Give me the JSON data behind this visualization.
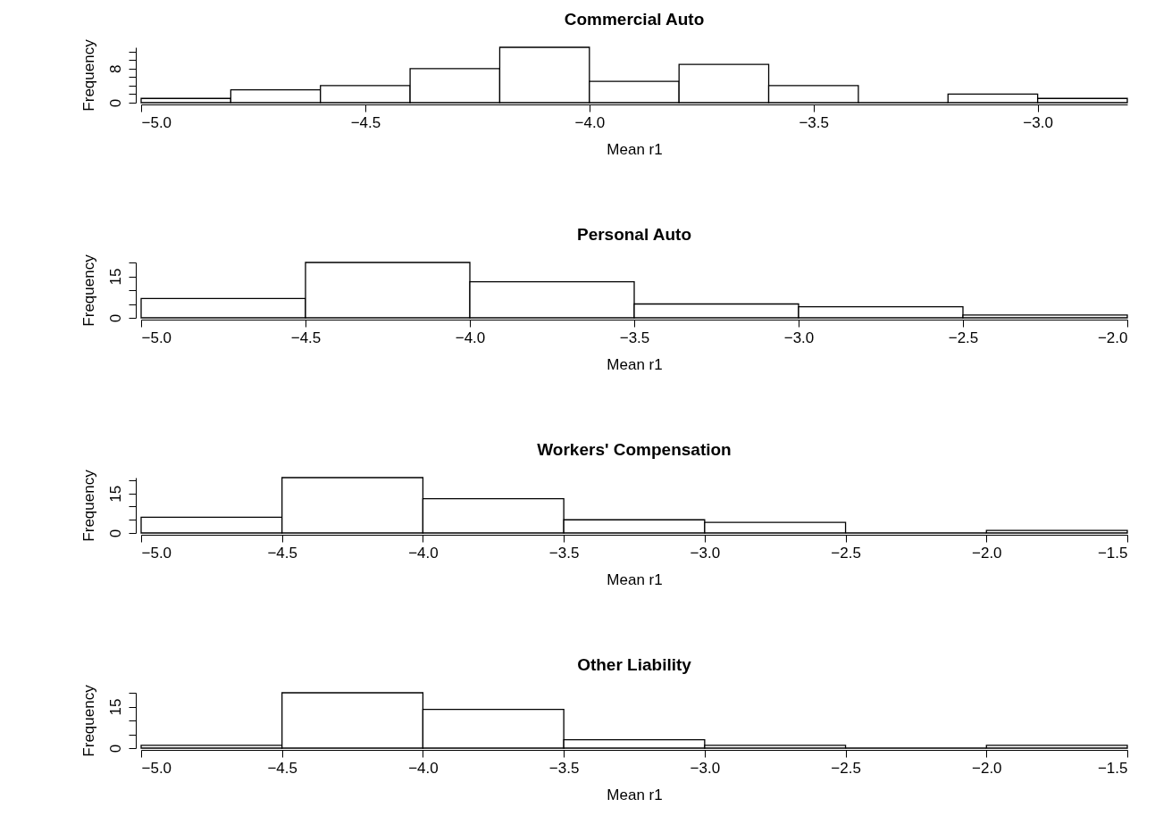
{
  "chart_data": [
    {
      "type": "histogram",
      "title": "Commercial Auto",
      "xlabel": "Mean r1",
      "ylabel": "Frequency",
      "bins": [
        -5.0,
        -4.8,
        -4.6,
        -4.4,
        -4.2,
        -4.0,
        -3.8,
        -3.6,
        -3.4,
        -3.2,
        -3.0,
        -2.8
      ],
      "values": [
        1,
        3,
        4,
        8,
        13,
        5,
        9,
        4,
        0,
        2,
        1
      ],
      "xlim": [
        -5.0,
        -2.8
      ],
      "xticks": [
        {
          "value": -5,
          "label": "−5.0"
        },
        {
          "value": -4.5,
          "label": "−4.5"
        },
        {
          "value": -4,
          "label": "−4.0"
        },
        {
          "value": -3.5,
          "label": "−3.5"
        },
        {
          "value": -3,
          "label": "−3.0"
        }
      ],
      "ylim": [
        0,
        13
      ],
      "yticks": [
        0,
        {
          "value": 2,
          "label": null
        },
        {
          "value": 4,
          "label": null
        },
        {
          "value": 6,
          "label": null
        },
        8,
        {
          "value": 10,
          "label": null
        },
        {
          "value": 12,
          "label": null
        }
      ],
      "grid": false
    },
    {
      "type": "histogram",
      "title": "Personal Auto",
      "xlabel": "Mean r1",
      "ylabel": "Frequency",
      "bins": [
        -5.0,
        -4.5,
        -4.0,
        -3.5,
        -3.0,
        -2.5,
        -2.0
      ],
      "values": [
        7,
        20,
        13,
        5,
        4,
        1
      ],
      "xlim": [
        -5.0,
        -2.0
      ],
      "xticks": [
        {
          "value": -5,
          "label": "−5.0"
        },
        {
          "value": -4.5,
          "label": "−4.5"
        },
        {
          "value": -4,
          "label": "−4.0"
        },
        {
          "value": -3.5,
          "label": "−3.5"
        },
        {
          "value": -3,
          "label": "−3.0"
        },
        {
          "value": -2.5,
          "label": "−2.5"
        },
        {
          "value": -2,
          "label": "−2.0"
        }
      ],
      "ylim": [
        0,
        20
      ],
      "yticks": [
        0,
        {
          "value": 5,
          "label": null
        },
        {
          "value": 10,
          "label": null
        },
        15,
        {
          "value": 20,
          "label": null
        }
      ],
      "grid": false
    },
    {
      "type": "histogram",
      "title": "Workers' Compensation",
      "xlabel": "Mean r1",
      "ylabel": "Frequency",
      "bins": [
        -5.0,
        -4.5,
        -4.0,
        -3.5,
        -3.0,
        -2.5,
        -2.0,
        -1.5
      ],
      "values": [
        6,
        21,
        13,
        5,
        4,
        0,
        1
      ],
      "xlim": [
        -5.0,
        -1.5
      ],
      "xticks": [
        {
          "value": -5,
          "label": "−5.0"
        },
        {
          "value": -4.5,
          "label": "−4.5"
        },
        {
          "value": -4,
          "label": "−4.0"
        },
        {
          "value": -3.5,
          "label": "−3.5"
        },
        {
          "value": -3,
          "label": "−3.0"
        },
        {
          "value": -2.5,
          "label": "−2.5"
        },
        {
          "value": -2,
          "label": "−2.0"
        },
        {
          "value": -1.5,
          "label": "−1.5"
        }
      ],
      "ylim": [
        0,
        21
      ],
      "yticks": [
        0,
        {
          "value": 5,
          "label": null
        },
        {
          "value": 10,
          "label": null
        },
        15,
        {
          "value": 20,
          "label": null
        }
      ],
      "grid": false
    },
    {
      "type": "histogram",
      "title": "Other Liability",
      "xlabel": "Mean r1",
      "ylabel": "Frequency",
      "bins": [
        -5.0,
        -4.5,
        -4.0,
        -3.5,
        -3.0,
        -2.5,
        -2.0,
        -1.5
      ],
      "values": [
        1,
        20,
        14,
        3,
        1,
        0,
        1
      ],
      "xlim": [
        -5.0,
        -1.5
      ],
      "xticks": [
        {
          "value": -5,
          "label": "−5.0"
        },
        {
          "value": -4.5,
          "label": "−4.5"
        },
        {
          "value": -4,
          "label": "−4.0"
        },
        {
          "value": -3.5,
          "label": "−3.5"
        },
        {
          "value": -3,
          "label": "−3.0"
        },
        {
          "value": -2.5,
          "label": "−2.5"
        },
        {
          "value": -2,
          "label": "−2.0"
        },
        {
          "value": -1.5,
          "label": "−1.5"
        }
      ],
      "ylim": [
        0,
        20
      ],
      "yticks": [
        0,
        {
          "value": 5,
          "label": null
        },
        {
          "value": 10,
          "label": null
        },
        15,
        {
          "value": 20,
          "label": null
        }
      ],
      "grid": false
    }
  ]
}
